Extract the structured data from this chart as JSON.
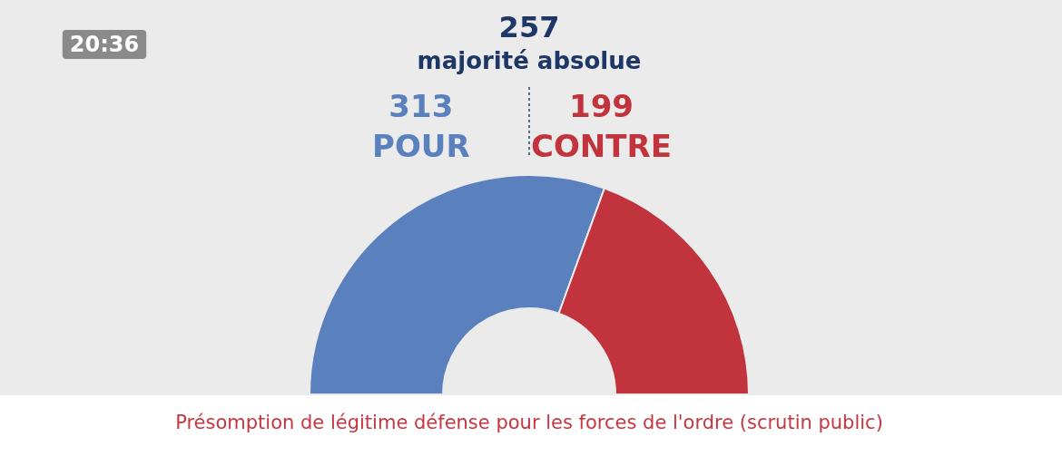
{
  "chart_data": {
    "type": "donut",
    "title": "Présomption de légitime défense pour les forces de l'ordre (scrutin public)",
    "categories": [
      "POUR",
      "CONTRE"
    ],
    "values": [
      313,
      199
    ],
    "colors": [
      "#5a80bd",
      "#c2343d"
    ],
    "data_labels": true,
    "annotations": [
      "257",
      "majorité absolue",
      "20:36"
    ]
  }
}
